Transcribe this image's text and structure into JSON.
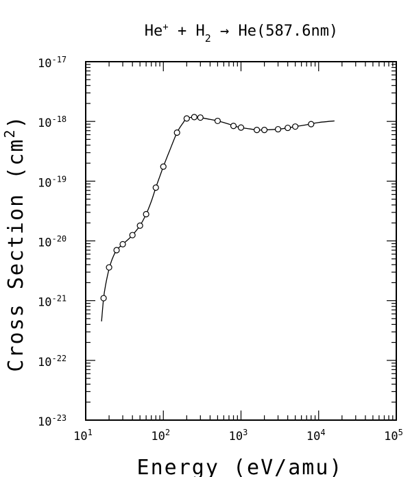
{
  "chart_data": {
    "type": "scatter",
    "title": {
      "prefix": "He",
      "ion_sup": "+",
      "mid": " + H",
      "sub": "2",
      "suffix": " → He(587.6nm)"
    },
    "xlabel": "Energy (eV/amu)",
    "ylabel": {
      "main": "Cross Section (cm",
      "sup": "2",
      "end": ")"
    },
    "x_scale": "log",
    "y_scale": "log",
    "xlim": [
      10,
      100000
    ],
    "ylim": [
      1e-23,
      1e-17
    ],
    "x_ticks": [
      {
        "base": "10",
        "exp": "1"
      },
      {
        "base": "10",
        "exp": "2"
      },
      {
        "base": "10",
        "exp": "3"
      },
      {
        "base": "10",
        "exp": "4"
      },
      {
        "base": "10",
        "exp": "5"
      }
    ],
    "y_ticks": [
      {
        "base": "10",
        "exp": "-23"
      },
      {
        "base": "10",
        "exp": "-22"
      },
      {
        "base": "10",
        "exp": "-21"
      },
      {
        "base": "10",
        "exp": "-20"
      },
      {
        "base": "10",
        "exp": "-19"
      },
      {
        "base": "10",
        "exp": "-18"
      },
      {
        "base": "10",
        "exp": "-17"
      }
    ],
    "grid": false,
    "series": [
      {
        "marker": "circle",
        "points": [
          [
            17,
            1.1e-21
          ],
          [
            20,
            3.6e-21
          ],
          [
            25,
            7e-21
          ],
          [
            30,
            8.8e-21
          ],
          [
            40,
            1.25e-20
          ],
          [
            50,
            1.8e-20
          ],
          [
            60,
            2.8e-20
          ],
          [
            80,
            7.8e-20
          ],
          [
            100,
            1.75e-19
          ],
          [
            150,
            6.5e-19
          ],
          [
            200,
            1.12e-18
          ],
          [
            250,
            1.18e-18
          ],
          [
            300,
            1.16e-18
          ],
          [
            500,
            1.02e-18
          ],
          [
            800,
            8.4e-19
          ],
          [
            1000,
            7.9e-19
          ],
          [
            1600,
            7.2e-19
          ],
          [
            2000,
            7.2e-19
          ],
          [
            3000,
            7.4e-19
          ],
          [
            4000,
            7.8e-19
          ],
          [
            5000,
            8.2e-19
          ],
          [
            8000,
            9e-19
          ]
        ]
      },
      {
        "line": "solid",
        "points": [
          [
            16,
            4.5e-22
          ],
          [
            17,
            1.1e-21
          ],
          [
            18,
            1.8e-21
          ],
          [
            20,
            3.4e-21
          ],
          [
            22,
            5e-21
          ],
          [
            25,
            7e-21
          ],
          [
            30,
            8.8e-21
          ],
          [
            35,
            1.05e-20
          ],
          [
            40,
            1.25e-20
          ],
          [
            50,
            1.8e-20
          ],
          [
            60,
            2.8e-20
          ],
          [
            70,
            4.6e-20
          ],
          [
            80,
            7.8e-20
          ],
          [
            90,
            1.2e-19
          ],
          [
            100,
            1.75e-19
          ],
          [
            120,
            3.2e-19
          ],
          [
            150,
            6.5e-19
          ],
          [
            180,
            9.5e-19
          ],
          [
            200,
            1.12e-18
          ],
          [
            250,
            1.18e-18
          ],
          [
            300,
            1.16e-18
          ],
          [
            400,
            1.08e-18
          ],
          [
            500,
            1.02e-18
          ],
          [
            700,
            9e-19
          ],
          [
            800,
            8.4e-19
          ],
          [
            1000,
            7.9e-19
          ],
          [
            1300,
            7.5e-19
          ],
          [
            1600,
            7.2e-19
          ],
          [
            2000,
            7.2e-19
          ],
          [
            3000,
            7.4e-19
          ],
          [
            4000,
            7.8e-19
          ],
          [
            5000,
            8.2e-19
          ],
          [
            7000,
            8.8e-19
          ],
          [
            10000,
            9.6e-19
          ],
          [
            16000,
            1.02e-18
          ]
        ]
      }
    ]
  }
}
